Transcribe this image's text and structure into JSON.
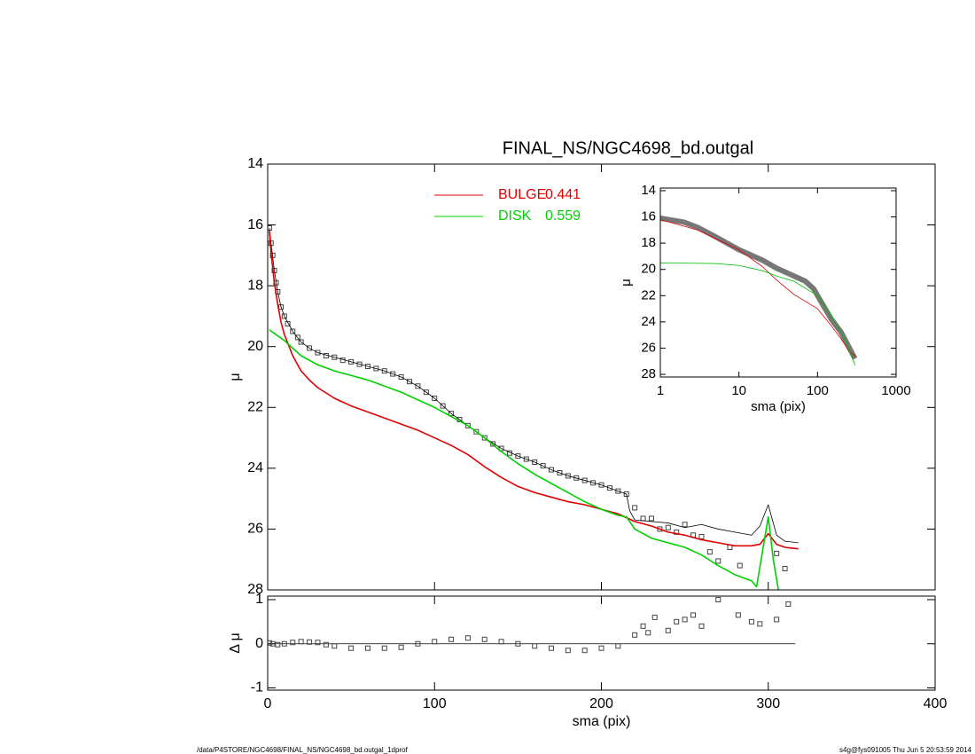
{
  "chart_data": [
    {
      "type": "line",
      "title": "FINAL_NS/NGC4698_bd.outgal",
      "ylabel": "μ",
      "xlim": [
        0,
        400
      ],
      "xticks": [
        0,
        100,
        200,
        300,
        400
      ],
      "ylim": [
        28,
        14
      ],
      "yticks": [
        14,
        16,
        18,
        20,
        22,
        24,
        26,
        28
      ],
      "series": [
        {
          "style": "points",
          "color": "#444444",
          "x": [
            1,
            2,
            3,
            4,
            5,
            6,
            8,
            10,
            12,
            15,
            18,
            20,
            25,
            30,
            35,
            40,
            45,
            50,
            55,
            60,
            65,
            70,
            75,
            80,
            85,
            90,
            95,
            100,
            105,
            110,
            115,
            120,
            125,
            130,
            135,
            140,
            145,
            150,
            155,
            160,
            165,
            170,
            175,
            180,
            185,
            190,
            195,
            200,
            205,
            210,
            215,
            220,
            225,
            230,
            235,
            240,
            245,
            250,
            255,
            260,
            265,
            270,
            277,
            283,
            305,
            310
          ],
          "values": [
            16.1,
            16.6,
            17.0,
            17.5,
            17.9,
            18.2,
            18.7,
            19.0,
            19.25,
            19.5,
            19.7,
            19.85,
            20.05,
            20.2,
            20.3,
            20.35,
            20.45,
            20.5,
            20.58,
            20.65,
            20.72,
            20.8,
            20.9,
            21.0,
            21.15,
            21.3,
            21.5,
            21.7,
            21.95,
            22.2,
            22.4,
            22.6,
            22.8,
            23.0,
            23.2,
            23.35,
            23.5,
            23.6,
            23.7,
            23.8,
            23.92,
            24.05,
            24.15,
            24.25,
            24.32,
            24.4,
            24.48,
            24.55,
            24.65,
            24.75,
            24.85,
            25.3,
            25.65,
            25.65,
            26.0,
            25.95,
            26.1,
            25.85,
            26.2,
            26.25,
            26.75,
            27.05,
            26.6,
            27.2,
            26.8,
            27.3
          ]
        },
        {
          "style": "line",
          "color": "#000000",
          "width": 0.8,
          "x": [
            1,
            2,
            4,
            6,
            8,
            10,
            15,
            20,
            25,
            30,
            40,
            50,
            60,
            70,
            80,
            90,
            100,
            110,
            120,
            130,
            140,
            150,
            160,
            170,
            180,
            190,
            200,
            210,
            215,
            217,
            220,
            230,
            240,
            250,
            260,
            270,
            280,
            290,
            295,
            300,
            305,
            310,
            318
          ],
          "values": [
            16.1,
            16.6,
            17.5,
            18.2,
            18.7,
            19.0,
            19.5,
            19.85,
            20.05,
            20.2,
            20.35,
            20.5,
            20.65,
            20.8,
            21.0,
            21.3,
            21.7,
            22.2,
            22.6,
            23.0,
            23.35,
            23.6,
            23.8,
            24.05,
            24.25,
            24.4,
            24.55,
            24.75,
            24.85,
            25.4,
            25.7,
            25.75,
            25.8,
            25.95,
            25.85,
            26.0,
            26.1,
            26.2,
            25.9,
            25.2,
            26.2,
            26.4,
            26.45
          ]
        },
        {
          "name": "BULGE",
          "fraction": 0.441,
          "style": "line",
          "color": "#e00000",
          "width": 1.6,
          "x": [
            1,
            2,
            4,
            6,
            8,
            10,
            15,
            20,
            25,
            30,
            40,
            50,
            60,
            70,
            80,
            90,
            100,
            110,
            120,
            130,
            140,
            150,
            160,
            170,
            180,
            190,
            200,
            210,
            220,
            230,
            240,
            250,
            260,
            270,
            280,
            290,
            295,
            300,
            305,
            310,
            318
          ],
          "values": [
            16.2,
            16.9,
            17.9,
            18.6,
            19.2,
            19.6,
            20.3,
            20.8,
            21.1,
            21.35,
            21.7,
            21.95,
            22.15,
            22.35,
            22.55,
            22.75,
            23.0,
            23.25,
            23.55,
            23.95,
            24.3,
            24.6,
            24.8,
            24.95,
            25.1,
            25.2,
            25.35,
            25.5,
            25.75,
            25.9,
            26.1,
            26.2,
            26.35,
            26.45,
            26.55,
            26.55,
            26.5,
            26.15,
            26.5,
            26.6,
            26.65
          ]
        },
        {
          "name": "DISK",
          "fraction": 0.559,
          "style": "line",
          "color": "#00d000",
          "width": 1.6,
          "x": [
            1,
            10,
            20,
            30,
            40,
            50,
            60,
            70,
            80,
            90,
            100,
            110,
            120,
            130,
            140,
            150,
            160,
            170,
            180,
            190,
            200,
            210,
            215,
            220,
            230,
            240,
            250,
            260,
            270,
            280,
            290,
            293,
            300,
            303,
            307
          ],
          "values": [
            19.45,
            19.8,
            20.3,
            20.6,
            20.8,
            20.95,
            21.1,
            21.3,
            21.5,
            21.75,
            22.0,
            22.3,
            22.6,
            23.0,
            23.45,
            23.85,
            24.2,
            24.5,
            24.8,
            25.1,
            25.35,
            25.55,
            25.6,
            26.0,
            26.3,
            26.45,
            26.6,
            26.85,
            27.2,
            27.5,
            27.7,
            27.9,
            25.6,
            27.0,
            28.3
          ]
        }
      ]
    },
    {
      "type": "scatter",
      "xlabel": "sma (pix)",
      "ylabel": "Δ μ",
      "xlim": [
        0,
        400
      ],
      "xticks": [
        0,
        100,
        200,
        300,
        400
      ],
      "ylim": [
        -1.05,
        1.08
      ],
      "yticks": [
        -1,
        0,
        1
      ],
      "series": [
        {
          "style": "points",
          "color": "#444444",
          "x": [
            1,
            3,
            6,
            10,
            15,
            20,
            25,
            30,
            35,
            40,
            50,
            60,
            70,
            80,
            90,
            100,
            110,
            120,
            130,
            140,
            150,
            160,
            170,
            180,
            190,
            200,
            210,
            220,
            225,
            228,
            232,
            240,
            245,
            250,
            255,
            260,
            270,
            282,
            290,
            295,
            305,
            312
          ],
          "values": [
            0.02,
            0.0,
            -0.02,
            0.0,
            0.03,
            0.05,
            0.04,
            0.03,
            -0.02,
            -0.05,
            -0.1,
            -0.1,
            -0.1,
            -0.08,
            0.0,
            0.05,
            0.1,
            0.13,
            0.1,
            0.05,
            0.0,
            -0.05,
            -0.1,
            -0.15,
            -0.15,
            -0.1,
            -0.05,
            0.2,
            0.4,
            0.25,
            0.6,
            0.3,
            0.5,
            0.55,
            0.65,
            0.4,
            1.0,
            0.65,
            0.5,
            0.45,
            0.55,
            0.9
          ]
        }
      ]
    },
    {
      "type": "line",
      "xlabel": "sma (pix)",
      "ylabel": "μ",
      "xlog": true,
      "xlim": [
        1,
        1000
      ],
      "xticks": [
        1,
        10,
        100,
        1000
      ],
      "ylim": [
        28.2,
        13.8
      ],
      "yticks": [
        14,
        16,
        18,
        20,
        22,
        24,
        26,
        28
      ],
      "series": [
        {
          "style": "line",
          "color": "#777777",
          "width": 6,
          "x": [
            1,
            2,
            3,
            5,
            10,
            20,
            30,
            50,
            70,
            90,
            100,
            150,
            200,
            250,
            300
          ],
          "values": [
            16.1,
            16.4,
            16.8,
            17.5,
            18.5,
            19.3,
            19.9,
            20.5,
            20.9,
            21.5,
            22.0,
            23.8,
            24.8,
            25.9,
            26.8
          ]
        },
        {
          "style": "line",
          "color": "#e00000",
          "width": 0.8,
          "x": [
            1,
            3,
            10,
            20,
            30,
            50,
            100,
            150,
            200,
            250,
            300
          ],
          "values": [
            16.2,
            17.0,
            18.5,
            19.8,
            20.8,
            21.9,
            23.0,
            24.3,
            25.3,
            26.2,
            26.6
          ]
        },
        {
          "style": "line",
          "color": "#00c000",
          "width": 0.8,
          "x": [
            1,
            5,
            10,
            20,
            30,
            50,
            100,
            150,
            200,
            250,
            300
          ],
          "values": [
            19.5,
            19.55,
            19.7,
            20.1,
            20.5,
            20.9,
            22.0,
            23.5,
            24.8,
            26.0,
            27.3
          ]
        }
      ]
    }
  ],
  "footer": {
    "left": "/data/P4STORE/NGC4698/FINAL_NS/NGC4698_bd.outgal_1dprof",
    "right": "s4g@fys091005  Thu Jun  5 20:53:59 2014"
  }
}
